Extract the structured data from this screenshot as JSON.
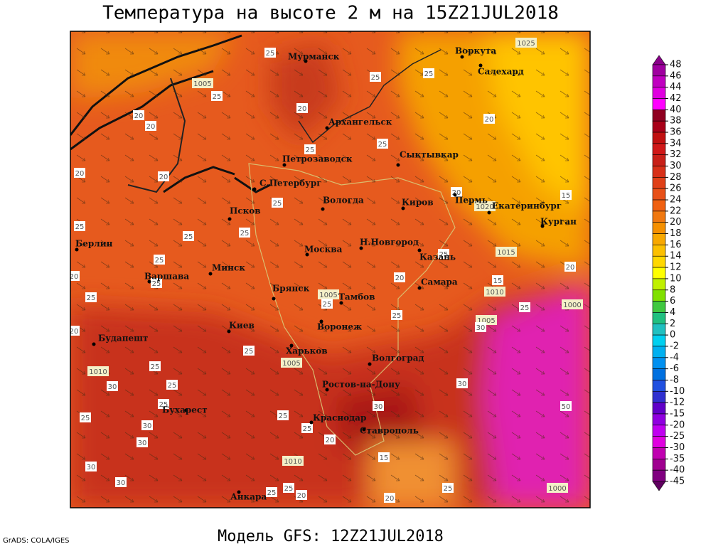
{
  "title": "Температура на высоте 2 м на 15Z21JUL2018",
  "footer": "Модель GFS: 12Z21JUL2018",
  "credit": "GrADS: COLA/IGES",
  "cities": [
    "Мурманск",
    "Воркута",
    "Салехард",
    "Архангельск",
    "Сыктывкар",
    "Петрозаводск",
    "С.Петербург",
    "Вологда",
    "Киров",
    "Пермь",
    "Екатеринбург",
    "Курган",
    "Псков",
    "Берлин",
    "Москва",
    "Н.Новгород",
    "Казань",
    "Минск",
    "Варшава",
    "Брянск",
    "Самара",
    "Тамбов",
    "Воронеж",
    "Киев",
    "Будапешт",
    "Харьков",
    "Волгоград",
    "Ростов-на-Дону",
    "Бухарест",
    "Краснодар",
    "Ставрополь",
    "Анкара"
  ],
  "contour_labels": [
    25,
    25,
    25,
    1025,
    1005,
    25,
    20,
    20,
    20,
    20,
    25,
    25,
    20,
    20,
    20,
    15,
    1020,
    25,
    25,
    25,
    25,
    25,
    25,
    1015,
    20,
    20,
    25,
    20,
    25,
    15,
    1010,
    1005,
    25,
    25,
    1000,
    25,
    1005,
    30,
    20,
    25,
    1005,
    25,
    1010,
    30,
    25,
    30,
    25,
    30,
    50,
    25,
    30,
    25,
    25,
    20,
    30,
    15,
    1010,
    30,
    30,
    25,
    25,
    20,
    20,
    25,
    1000
  ],
  "colorbar": {
    "ticks": [
      48,
      46,
      44,
      42,
      40,
      38,
      36,
      34,
      32,
      30,
      28,
      26,
      24,
      22,
      20,
      18,
      16,
      14,
      12,
      10,
      8,
      6,
      4,
      2,
      0,
      -2,
      -4,
      -6,
      -8,
      -10,
      -12,
      -15,
      -20,
      -25,
      -30,
      -35,
      -40,
      -45
    ],
    "colors": [
      "#8a008a",
      "#a000a0",
      "#c000c0",
      "#e000e0",
      "#ff00ff",
      "#900020",
      "#a80018",
      "#c01010",
      "#d01818",
      "#c82018",
      "#d83018",
      "#e04018",
      "#e85018",
      "#f06010",
      "#f07810",
      "#f59000",
      "#f8a800",
      "#fcc000",
      "#ffd800",
      "#ffff00",
      "#c0f000",
      "#80e000",
      "#40c840",
      "#20c080",
      "#20c0c0",
      "#00d0f0",
      "#00b0f0",
      "#0090f0",
      "#0070e0",
      "#2050e0",
      "#3030d0",
      "#6000c8",
      "#9000e0",
      "#c000f0",
      "#e000e0",
      "#c000b0",
      "#a00090",
      "#800080",
      "#600060"
    ]
  }
}
